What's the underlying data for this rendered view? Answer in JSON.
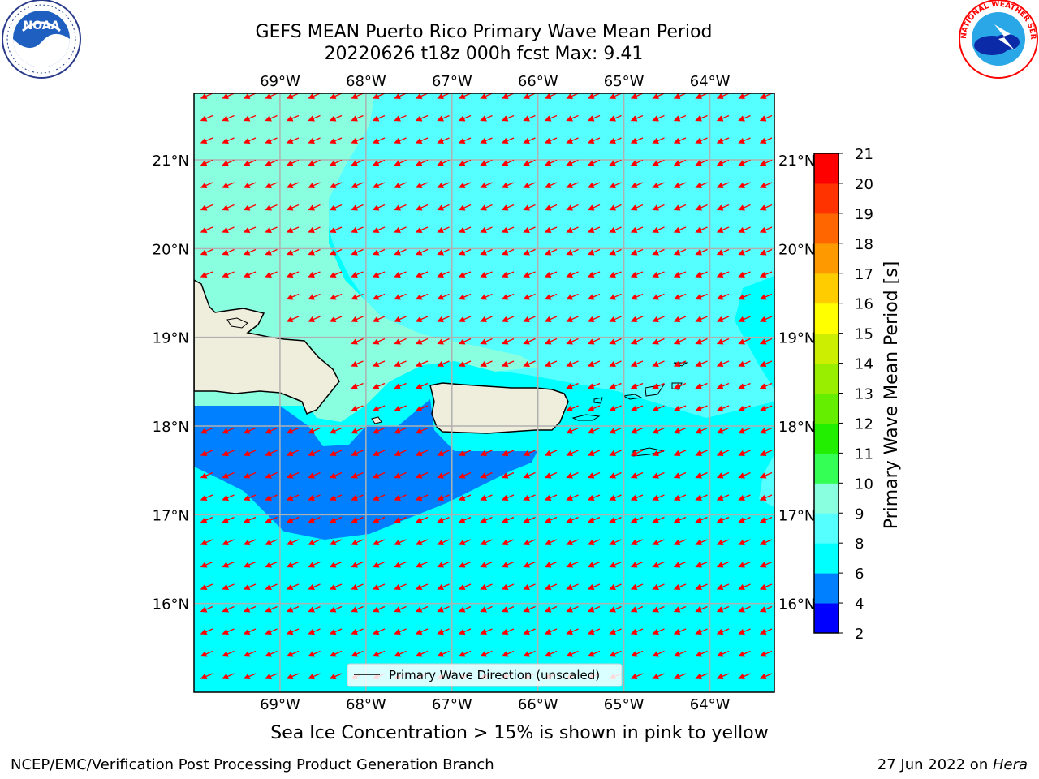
{
  "title_line1": "GEFS MEAN Puerto Rico Primary Wave Mean Period",
  "title_line2": "20220626 t18z 000h fcst   Max: 9.41",
  "subcaption": "Sea Ice Concentration > 15% is shown in pink to yellow",
  "footer_left": "NCEP/EMC/Verification Post Processing Product Generation Branch",
  "footer_right_prefix": "27 Jun 2022 on ",
  "footer_right_machine": "Hera",
  "legend_label": "Primary Wave Direction (unscaled)",
  "logos": {
    "noaa_text": "NOAA",
    "nws_text": "NATIONAL WEATHER SERVICE"
  },
  "map": {
    "lon_labels": [
      "69°W",
      "68°W",
      "67°W",
      "66°W",
      "65°W",
      "64°W"
    ],
    "lat_labels": [
      "21°N",
      "20°N",
      "19°N",
      "18°N",
      "17°N",
      "16°N"
    ],
    "lon_values": [
      -69,
      -68,
      -67,
      -66,
      -65,
      -64
    ],
    "lat_values": [
      21,
      20,
      19,
      18,
      17,
      16
    ],
    "extent": {
      "lon_min": -70,
      "lon_max": -63.25,
      "lat_min": 15,
      "lat_max": 21.75
    },
    "wave_direction": "from north-east",
    "land_color": "#efeedc",
    "arrow_color": "#ff0000"
  },
  "colorbar": {
    "label": "Primary Wave Mean Period [s]",
    "ticks": [
      "2",
      "4",
      "6",
      "8",
      "9",
      "10",
      "11",
      "12",
      "13",
      "14",
      "15",
      "16",
      "17",
      "18",
      "19",
      "20",
      "21"
    ],
    "colors": [
      "#0000ff",
      "#0080ff",
      "#00ffff",
      "#55ffff",
      "#8affe0",
      "#33ff55",
      "#22ee00",
      "#66ee00",
      "#99ee00",
      "#ccee00",
      "#ffff00",
      "#ffcc00",
      "#ff9900",
      "#ff6600",
      "#ff3300",
      "#ff0000"
    ]
  }
}
